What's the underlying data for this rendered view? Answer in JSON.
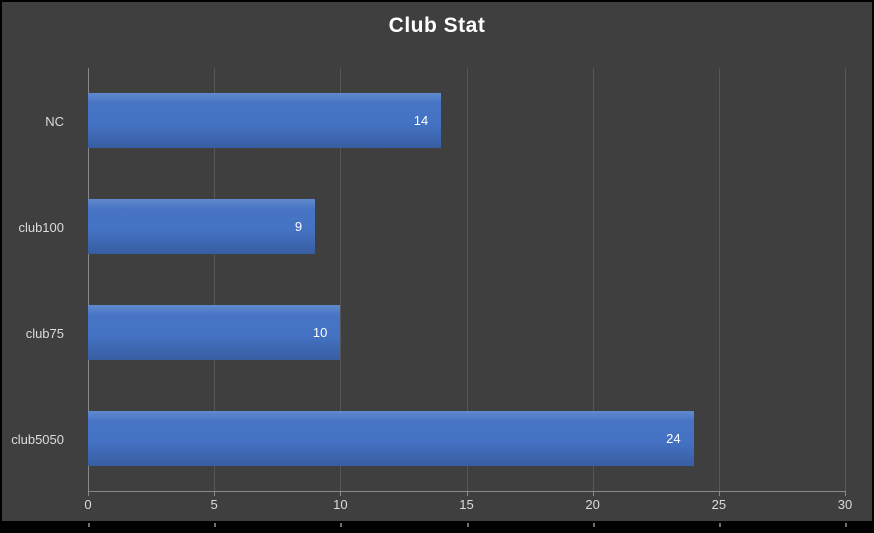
{
  "chart_data": {
    "type": "bar",
    "orientation": "horizontal",
    "title": "Club Stat",
    "categories": [
      "NC",
      "club100",
      "club75",
      "club5050"
    ],
    "values": [
      14,
      9,
      10,
      24
    ],
    "data_labels": [
      14,
      9,
      10,
      24
    ],
    "xlim": [
      0,
      30
    ],
    "x_ticks": [
      0,
      5,
      10,
      15,
      20,
      25,
      30
    ],
    "grid": true,
    "legend": false,
    "colors": {
      "bar": "#4472C4",
      "background": "#3F3F3F",
      "gridline": "#575757",
      "axis": "#898989",
      "text": "#DCDCDC",
      "title": "#FFFFFF",
      "label": "#FFFFFF",
      "border": "#000000"
    }
  }
}
